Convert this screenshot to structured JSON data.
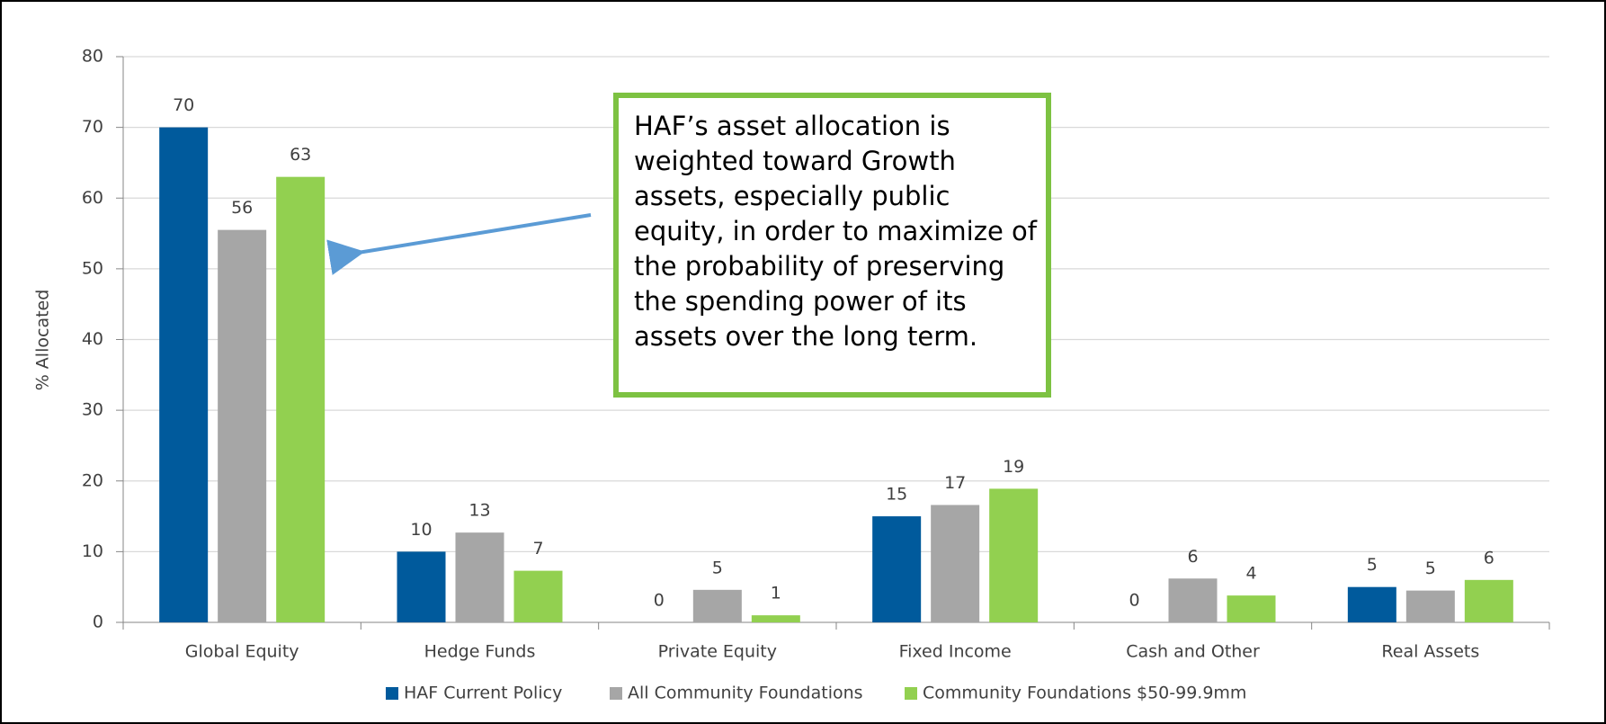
{
  "chart_data": {
    "type": "bar",
    "y_label": "% Allocated",
    "categories": [
      "Global Equity",
      "Hedge Funds",
      "Private Equity",
      "Fixed Income",
      "Cash and Other",
      "Real Assets"
    ],
    "series": [
      {
        "name": "HAF Current Policy",
        "color": "#005a9c",
        "values": [
          70,
          10,
          0,
          15,
          0,
          5
        ]
      },
      {
        "name": "All Community Foundations",
        "color": "#a6a6a6",
        "values": [
          55.5,
          12.7,
          4.6,
          16.6,
          6.2,
          4.5
        ],
        "value_labels": [
          "56",
          "13",
          "5",
          "17",
          "6",
          "5"
        ]
      },
      {
        "name": "Community Foundations $50-99.9mm",
        "color": "#92d050",
        "values": [
          63,
          7.3,
          1.0,
          18.9,
          3.8,
          6.0
        ],
        "value_labels": [
          "63",
          "7",
          "1",
          "19",
          "4",
          "6"
        ]
      }
    ],
    "ylim": [
      0,
      80
    ],
    "yticks": [
      0,
      10,
      20,
      30,
      40,
      50,
      60,
      70,
      80
    ],
    "grid": true,
    "legend": "bottom",
    "annotation": {
      "lines": [
        "HAF’s asset allocation is",
        "weighted toward Growth",
        "assets, especially public",
        "equity, in order to maximize of",
        "the probability of preserving",
        "the spending power of its",
        "assets over the long term."
      ],
      "border_color": "#7dc242"
    }
  }
}
